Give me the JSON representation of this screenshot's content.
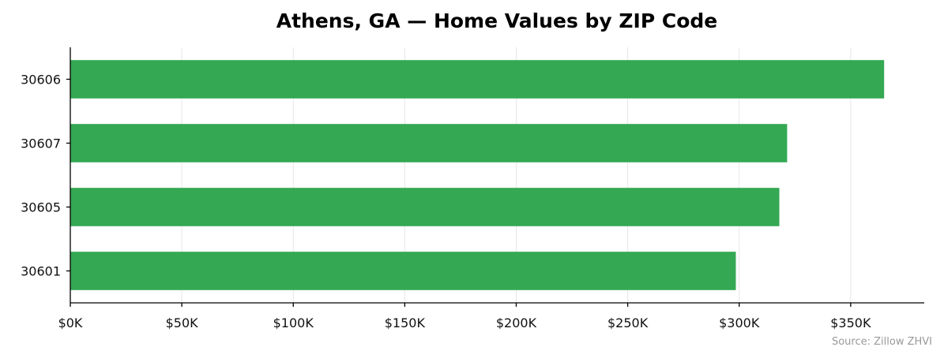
{
  "chart_data": {
    "type": "bar",
    "orientation": "horizontal",
    "title": "Athens, GA — Home Values by ZIP Code",
    "categories": [
      "30606",
      "30607",
      "30605",
      "30601"
    ],
    "values": [
      365000,
      321500,
      318000,
      298500
    ],
    "xlabel": "",
    "ylabel": "",
    "xlim": [
      0,
      383000
    ],
    "xticks": [
      0,
      50000,
      100000,
      150000,
      200000,
      250000,
      300000,
      350000
    ],
    "xtick_labels": [
      "$0K",
      "$50K",
      "$100K",
      "$150K",
      "$200K",
      "$250K",
      "$300K",
      "$350K"
    ],
    "grid": "vertical",
    "bar_color": "#34a853",
    "note": "Source: Zillow ZHVI"
  }
}
